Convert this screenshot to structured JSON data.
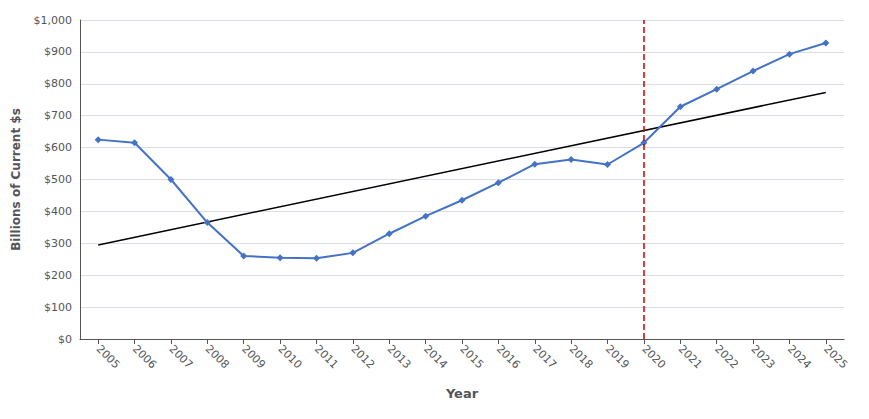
{
  "chart_data": {
    "type": "line",
    "xlabel": "Year",
    "ylabel": "Billions of Current $s",
    "x": [
      2005,
      2006,
      2007,
      2008,
      2009,
      2010,
      2011,
      2012,
      2013,
      2014,
      2015,
      2016,
      2017,
      2018,
      2019,
      2020,
      2021,
      2022,
      2023,
      2024,
      2025
    ],
    "series": [
      {
        "x": [
          2005,
          2025
        ],
        "values": [
          295,
          773
        ],
        "color": "#000000"
      },
      {
        "values": [
          625,
          615,
          500,
          365,
          260,
          255,
          253,
          270,
          330,
          385,
          435,
          490,
          548,
          563,
          547,
          615,
          728,
          783,
          840,
          893,
          928
        ],
        "color": "#4472C4",
        "marker": "diamond"
      }
    ],
    "vlines": [
      {
        "x": 2020,
        "color": "#CC0000",
        "line_style": "dashed"
      }
    ],
    "xlim": [
      2004.5,
      2025.5
    ],
    "xticks": [
      2005,
      2006,
      2007,
      2008,
      2009,
      2010,
      2011,
      2012,
      2013,
      2014,
      2015,
      2016,
      2017,
      2018,
      2019,
      2020,
      2021,
      2022,
      2023,
      2024,
      2025
    ],
    "ylim": [
      0,
      1000
    ],
    "yticks": [
      {
        "value": 0,
        "label": "$0"
      },
      {
        "value": 100,
        "label": "$100"
      },
      {
        "value": 200,
        "label": "$200"
      },
      {
        "value": 300,
        "label": "$300"
      },
      {
        "value": 400,
        "label": "$400"
      },
      {
        "value": 500,
        "label": "$500"
      },
      {
        "value": 600,
        "label": "$600"
      },
      {
        "value": 700,
        "label": "$700"
      },
      {
        "value": 800,
        "label": "$800"
      },
      {
        "value": 900,
        "label": "$900"
      },
      {
        "value": 1000,
        "label": "$1,000"
      }
    ],
    "grid": true
  }
}
